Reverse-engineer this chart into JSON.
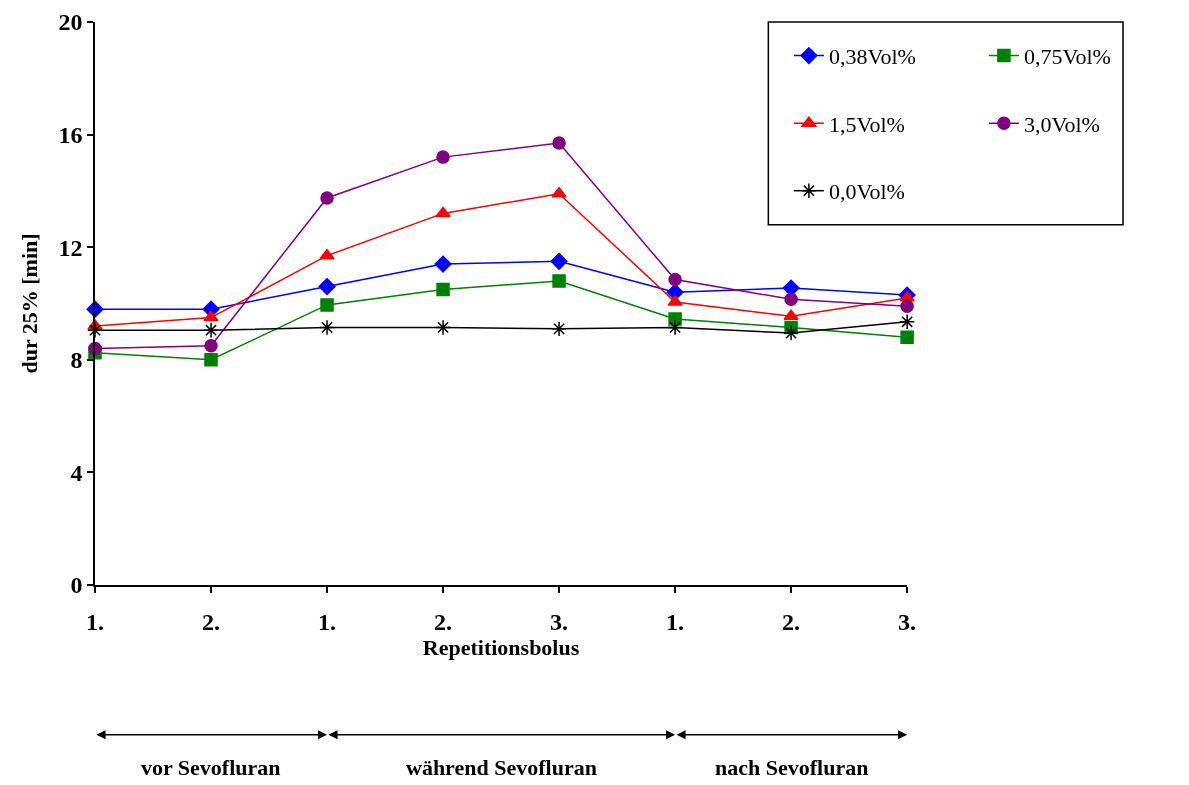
{
  "chart_data": {
    "type": "line",
    "xlabel": "Repetitionsbolus",
    "ylabel": "dur 25% [min]",
    "categories": [
      "1.",
      "2.",
      "1.",
      "2.",
      "3.",
      "1.",
      "2.",
      "3."
    ],
    "ylim": [
      0,
      20
    ],
    "yticks": [
      0,
      4,
      8,
      12,
      16,
      20
    ],
    "legend": "top right",
    "series": [
      {
        "name": "0,38Vol%",
        "color": "#0000ff",
        "marker": "diamond",
        "values": [
          9.8,
          9.8,
          10.6,
          11.4,
          11.5,
          10.4,
          10.55,
          10.3
        ]
      },
      {
        "name": "0,75Vol%",
        "color": "#008000",
        "marker": "square",
        "values": [
          8.25,
          8.0,
          9.95,
          10.5,
          10.8,
          9.45,
          9.15,
          8.8
        ]
      },
      {
        "name": "1,5Vol%",
        "color": "#ff0000",
        "marker": "triangle",
        "values": [
          9.2,
          9.5,
          11.7,
          13.2,
          13.9,
          10.05,
          9.55,
          10.2
        ]
      },
      {
        "name": "3,0Vol%",
        "color": "#800080",
        "marker": "circle",
        "values": [
          8.4,
          8.5,
          13.75,
          15.2,
          15.7,
          10.85,
          10.15,
          9.9
        ]
      },
      {
        "name": "0,0Vol%",
        "color": "#000000",
        "marker": "cross",
        "values": [
          9.05,
          9.05,
          9.15,
          9.15,
          9.1,
          9.15,
          8.95,
          9.35
        ]
      }
    ],
    "annotations": [
      "vor Sevofluran",
      "während Sevofluran",
      "nach Sevofluran"
    ]
  }
}
